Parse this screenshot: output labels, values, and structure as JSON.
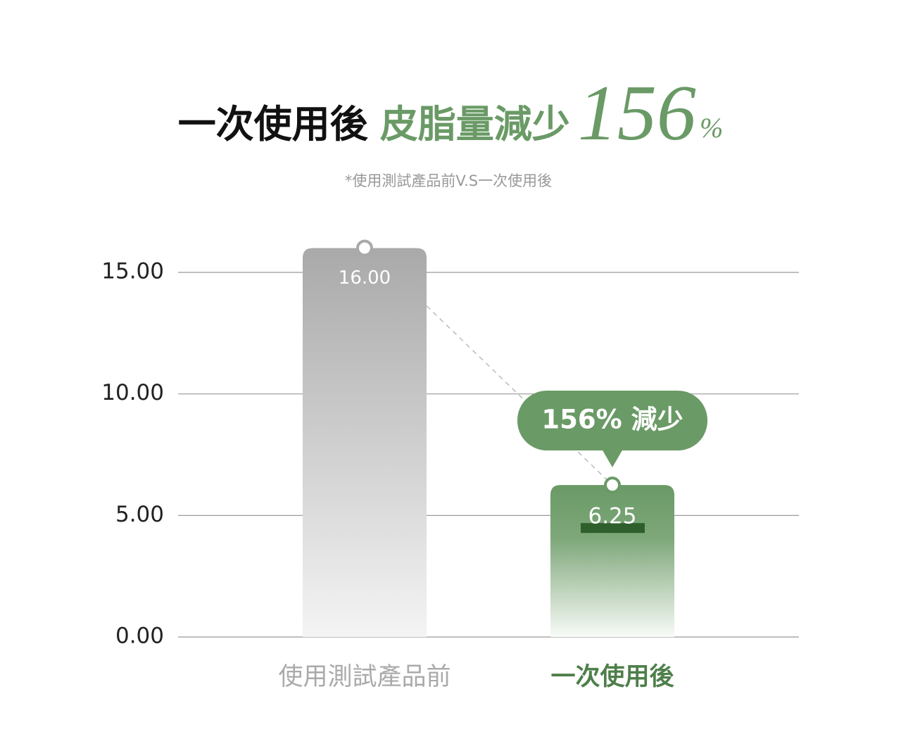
{
  "chart_data": {
    "type": "bar",
    "title_parts": [
      "一次使用後",
      "皮脂量減少",
      "156",
      "%"
    ],
    "subtitle": "*使用測試產品前V.S一次使用後",
    "annotation": "156% 減少",
    "categories": [
      "使用測試產品前",
      "一次使用後"
    ],
    "values": [
      16,
      6.25
    ],
    "value_labels": [
      "16.00",
      "6.25"
    ],
    "colors": [
      "#a9a9a9",
      "#6a9a66"
    ],
    "ylim": [
      0,
      16
    ],
    "yticks": [
      {
        "value": 0,
        "label": "0.00"
      },
      {
        "value": 5,
        "label": "5.00"
      },
      {
        "value": 10,
        "label": "10.00"
      },
      {
        "value": 15,
        "label": "15.00"
      }
    ],
    "grid": true
  }
}
